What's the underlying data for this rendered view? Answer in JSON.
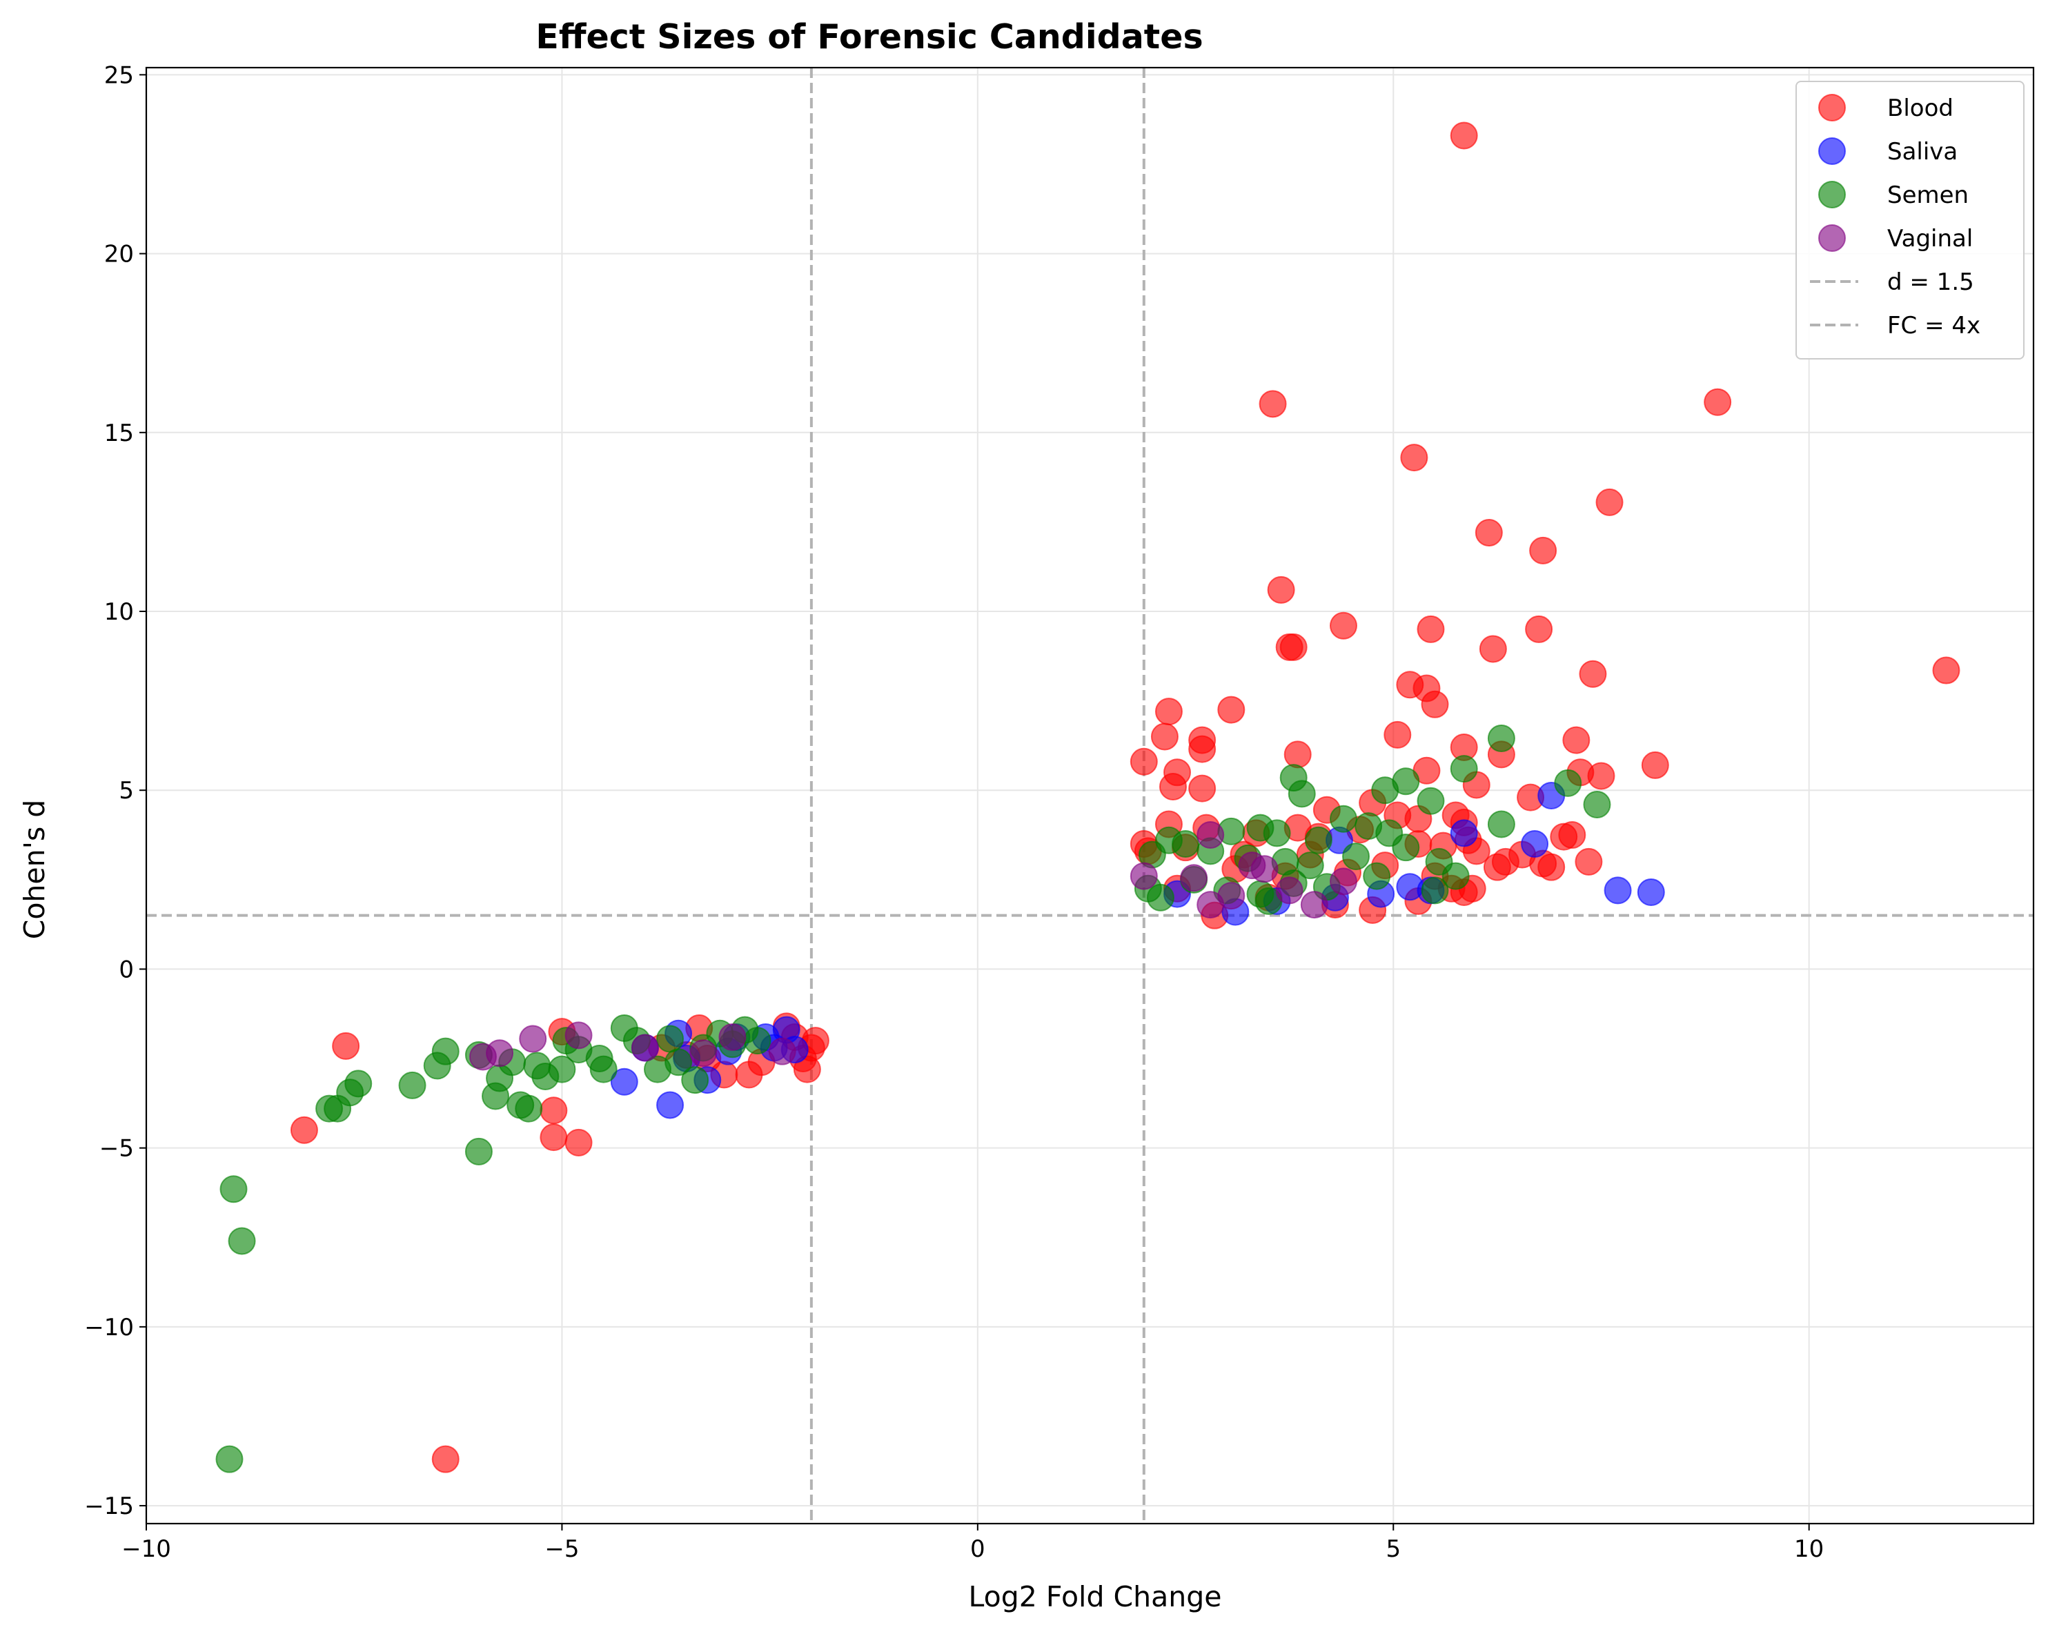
{
  "chart_data": {
    "type": "scatter",
    "title": "Effect Sizes of Forensic Candidates",
    "xlabel": "Log2 Fold Change",
    "ylabel": "Cohen's d",
    "xlim": [
      -10,
      12.7
    ],
    "ylim": [
      -15.5,
      25.2
    ],
    "xticks": [
      -10,
      -5,
      0,
      5,
      10
    ],
    "yticks": [
      -15,
      -10,
      -5,
      0,
      5,
      10,
      15,
      20,
      25
    ],
    "xtick_labels": [
      "−10",
      "−5",
      "0",
      "5",
      "10"
    ],
    "ytick_labels": [
      "−15",
      "−10",
      "−5",
      "0",
      "5",
      "10",
      "15",
      "20",
      "25"
    ],
    "grid": true,
    "legend_position": "top-right",
    "threshold_lines": [
      {
        "label": "d = 1.5",
        "orientation": "horizontal",
        "value": 1.5,
        "color": "#b3b3b3"
      },
      {
        "label": "FC = 4x",
        "orientation": "vertical",
        "values": [
          -2,
          2
        ],
        "color": "#b3b3b3"
      }
    ],
    "series": [
      {
        "name": "Blood",
        "color": "#ff0000",
        "points": [
          [
            5.85,
            23.3
          ],
          [
            8.9,
            15.85
          ],
          [
            3.55,
            15.8
          ],
          [
            5.25,
            14.3
          ],
          [
            7.6,
            13.05
          ],
          [
            6.15,
            12.2
          ],
          [
            6.8,
            11.7
          ],
          [
            3.65,
            10.6
          ],
          [
            4.4,
            9.6
          ],
          [
            5.45,
            9.5
          ],
          [
            6.75,
            9.5
          ],
          [
            3.75,
            9.0
          ],
          [
            3.8,
            9.0
          ],
          [
            6.2,
            8.95
          ],
          [
            11.65,
            8.35
          ],
          [
            7.4,
            8.25
          ],
          [
            5.2,
            7.95
          ],
          [
            5.4,
            7.85
          ],
          [
            5.5,
            7.4
          ],
          [
            2.3,
            7.2
          ],
          [
            3.05,
            7.25
          ],
          [
            2.25,
            6.5
          ],
          [
            2.7,
            6.4
          ],
          [
            5.05,
            6.55
          ],
          [
            7.2,
            6.4
          ],
          [
            2.7,
            6.15
          ],
          [
            5.85,
            6.2
          ],
          [
            3.85,
            6.0
          ],
          [
            6.3,
            6.0
          ],
          [
            2.0,
            5.8
          ],
          [
            8.15,
            5.7
          ],
          [
            5.4,
            5.55
          ],
          [
            7.25,
            5.5
          ],
          [
            7.5,
            5.4
          ],
          [
            2.4,
            5.5
          ],
          [
            2.35,
            5.1
          ],
          [
            2.7,
            5.05
          ],
          [
            6.0,
            5.15
          ],
          [
            6.65,
            4.8
          ],
          [
            4.75,
            4.65
          ],
          [
            4.2,
            4.45
          ],
          [
            5.05,
            4.3
          ],
          [
            5.75,
            4.3
          ],
          [
            5.85,
            4.1
          ],
          [
            5.3,
            4.2
          ],
          [
            2.3,
            4.05
          ],
          [
            2.75,
            3.95
          ],
          [
            3.35,
            3.8
          ],
          [
            3.85,
            3.95
          ],
          [
            4.1,
            3.7
          ],
          [
            4.6,
            3.9
          ],
          [
            5.9,
            3.6
          ],
          [
            7.05,
            3.7
          ],
          [
            7.15,
            3.75
          ],
          [
            2.0,
            3.5
          ],
          [
            2.05,
            3.3
          ],
          [
            2.5,
            3.4
          ],
          [
            3.2,
            3.2
          ],
          [
            5.3,
            3.5
          ],
          [
            5.6,
            3.45
          ],
          [
            6.0,
            3.3
          ],
          [
            6.55,
            3.2
          ],
          [
            6.8,
            2.95
          ],
          [
            6.9,
            2.85
          ],
          [
            7.35,
            3.0
          ],
          [
            6.25,
            2.85
          ],
          [
            6.35,
            3.0
          ],
          [
            5.5,
            2.6
          ],
          [
            5.7,
            2.25
          ],
          [
            5.85,
            2.15
          ],
          [
            5.95,
            2.25
          ],
          [
            5.3,
            1.9
          ],
          [
            4.3,
            1.8
          ],
          [
            4.75,
            1.65
          ],
          [
            2.85,
            1.5
          ],
          [
            3.5,
            2.0
          ],
          [
            2.4,
            2.25
          ],
          [
            3.7,
            2.6
          ],
          [
            4.45,
            2.7
          ],
          [
            4.9,
            2.9
          ],
          [
            3.1,
            2.8
          ],
          [
            4.0,
            3.2
          ],
          [
            -5.0,
            -1.75
          ],
          [
            -5.1,
            -3.95
          ],
          [
            -5.1,
            -4.7
          ],
          [
            -4.8,
            -4.85
          ],
          [
            -8.1,
            -4.5
          ],
          [
            -7.6,
            -2.15
          ],
          [
            -6.4,
            -13.7
          ],
          [
            -3.35,
            -1.65
          ],
          [
            -3.25,
            -2.5
          ],
          [
            -3.05,
            -2.95
          ],
          [
            -2.75,
            -2.95
          ],
          [
            -2.3,
            -1.6
          ],
          [
            -2.2,
            -1.9
          ],
          [
            -2.1,
            -2.5
          ],
          [
            -2.05,
            -2.8
          ],
          [
            -1.95,
            -2.0
          ],
          [
            -2.0,
            -2.2
          ],
          [
            -3.5,
            -2.4
          ],
          [
            -2.6,
            -2.6
          ],
          [
            -3.8,
            -2.2
          ]
        ]
      },
      {
        "name": "Saliva",
        "color": "#0000ff",
        "points": [
          [
            6.9,
            4.85
          ],
          [
            5.85,
            3.8
          ],
          [
            6.7,
            3.5
          ],
          [
            4.35,
            3.6
          ],
          [
            7.7,
            2.2
          ],
          [
            8.1,
            2.15
          ],
          [
            5.2,
            2.3
          ],
          [
            5.45,
            2.2
          ],
          [
            4.3,
            2.0
          ],
          [
            3.1,
            1.6
          ],
          [
            4.85,
            2.1
          ],
          [
            2.4,
            2.1
          ],
          [
            3.6,
            1.9
          ],
          [
            -4.25,
            -3.15
          ],
          [
            -3.7,
            -3.8
          ],
          [
            -3.25,
            -3.1
          ],
          [
            -4.0,
            -2.2
          ],
          [
            -3.6,
            -1.8
          ],
          [
            -3.5,
            -2.5
          ],
          [
            -2.9,
            -1.9
          ],
          [
            -2.55,
            -1.9
          ],
          [
            -2.45,
            -2.2
          ],
          [
            -2.3,
            -1.7
          ],
          [
            -2.2,
            -2.25
          ],
          [
            -3.0,
            -2.3
          ]
        ]
      },
      {
        "name": "Semen",
        "color": "#008000",
        "points": [
          [
            6.3,
            6.45
          ],
          [
            5.85,
            5.6
          ],
          [
            5.15,
            5.25
          ],
          [
            7.1,
            5.2
          ],
          [
            3.8,
            5.35
          ],
          [
            3.9,
            4.9
          ],
          [
            4.9,
            5.0
          ],
          [
            5.45,
            4.7
          ],
          [
            7.45,
            4.6
          ],
          [
            6.3,
            4.05
          ],
          [
            4.4,
            4.2
          ],
          [
            4.7,
            4.0
          ],
          [
            3.4,
            3.95
          ],
          [
            3.05,
            3.85
          ],
          [
            2.3,
            3.6
          ],
          [
            2.5,
            3.5
          ],
          [
            3.6,
            3.8
          ],
          [
            4.1,
            3.6
          ],
          [
            4.95,
            3.8
          ],
          [
            5.15,
            3.4
          ],
          [
            2.1,
            3.2
          ],
          [
            2.8,
            3.3
          ],
          [
            3.25,
            3.1
          ],
          [
            3.7,
            3.0
          ],
          [
            4.0,
            2.9
          ],
          [
            4.55,
            3.15
          ],
          [
            5.55,
            3.0
          ],
          [
            5.75,
            2.6
          ],
          [
            2.05,
            2.25
          ],
          [
            2.2,
            2.0
          ],
          [
            2.6,
            2.5
          ],
          [
            3.0,
            2.2
          ],
          [
            3.4,
            2.1
          ],
          [
            3.5,
            1.9
          ],
          [
            3.8,
            2.4
          ],
          [
            4.2,
            2.3
          ],
          [
            4.8,
            2.6
          ],
          [
            5.5,
            2.2
          ],
          [
            -8.95,
            -6.15
          ],
          [
            -8.85,
            -7.6
          ],
          [
            -9.0,
            -13.7
          ],
          [
            -6.0,
            -5.1
          ],
          [
            -6.8,
            -3.25
          ],
          [
            -7.45,
            -3.2
          ],
          [
            -7.55,
            -3.45
          ],
          [
            -7.8,
            -3.9
          ],
          [
            -7.7,
            -3.9
          ],
          [
            -6.5,
            -2.7
          ],
          [
            -6.4,
            -2.3
          ],
          [
            -6.0,
            -2.4
          ],
          [
            -5.75,
            -3.05
          ],
          [
            -5.8,
            -3.55
          ],
          [
            -5.5,
            -3.8
          ],
          [
            -5.4,
            -3.9
          ],
          [
            -5.2,
            -3.0
          ],
          [
            -5.0,
            -2.8
          ],
          [
            -4.8,
            -2.25
          ],
          [
            -4.55,
            -2.5
          ],
          [
            -4.5,
            -2.8
          ],
          [
            -4.25,
            -1.65
          ],
          [
            -4.1,
            -2.0
          ],
          [
            -3.85,
            -2.8
          ],
          [
            -3.6,
            -2.6
          ],
          [
            -3.4,
            -3.1
          ],
          [
            -3.3,
            -2.2
          ],
          [
            -3.1,
            -1.8
          ],
          [
            -2.95,
            -2.1
          ],
          [
            -2.8,
            -1.7
          ],
          [
            -2.65,
            -2.0
          ],
          [
            -5.3,
            -2.7
          ],
          [
            -5.6,
            -2.6
          ],
          [
            -4.95,
            -2.0
          ],
          [
            -3.7,
            -1.95
          ]
        ]
      },
      {
        "name": "Vaginal",
        "color": "#800080",
        "points": [
          [
            2.0,
            2.6
          ],
          [
            2.6,
            2.55
          ],
          [
            2.8,
            3.75
          ],
          [
            3.05,
            2.05
          ],
          [
            3.3,
            2.9
          ],
          [
            3.45,
            2.8
          ],
          [
            4.05,
            1.8
          ],
          [
            4.4,
            2.45
          ],
          [
            2.8,
            1.8
          ],
          [
            3.75,
            2.2
          ],
          [
            -5.95,
            -2.45
          ],
          [
            -5.75,
            -2.35
          ],
          [
            -5.35,
            -1.95
          ],
          [
            -4.8,
            -1.85
          ],
          [
            -4.0,
            -2.2
          ],
          [
            -3.3,
            -2.35
          ],
          [
            -2.95,
            -1.9
          ],
          [
            -2.35,
            -2.3
          ]
        ]
      }
    ]
  }
}
